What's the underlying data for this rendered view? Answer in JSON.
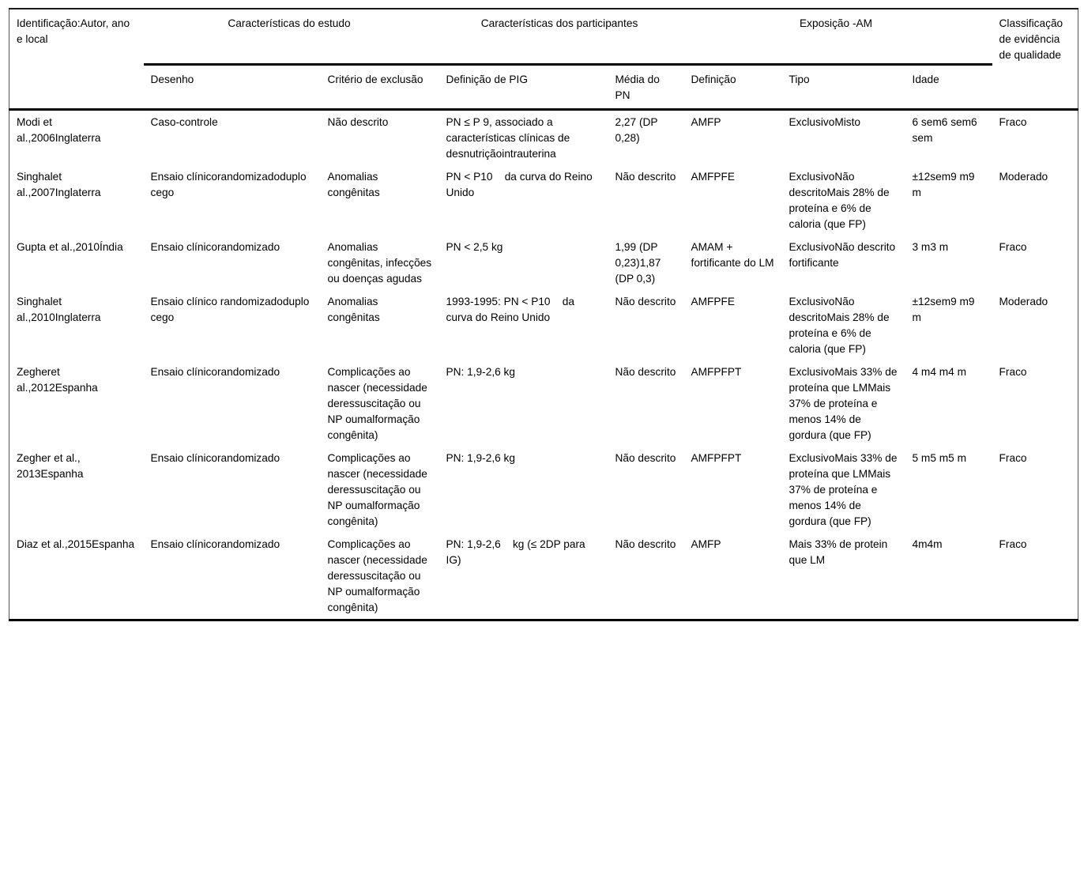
{
  "table": {
    "header": {
      "col_identification": "Identificação:Autor, ano e local",
      "group_study": "Características do estudo",
      "group_participants": "Características dos participantes",
      "group_exposure": "Exposição -AM",
      "col_quality": "Classificação de evidência de qualidade",
      "sub_design": "Desenho",
      "sub_exclusion": "Critério de exclusão",
      "sub_pig_definition": "Definição de PIG",
      "sub_mean_pn": "Média do PN",
      "sub_definition": "Definição",
      "sub_type": "Tipo",
      "sub_age": "Idade"
    },
    "rows": [
      [
        "Modi et al.,2006Inglaterra",
        "Caso-controle",
        "Não descrito",
        "PN ≤ P 9, associado a características clínicas de desnutriçãointrauterina",
        "2,27 (DP 0,28)",
        "AMFP",
        "ExclusivoMisto",
        "6 sem6 sem6 sem",
        "Fraco"
      ],
      [
        "Singhalet al.,2007Inglaterra",
        "Ensaio clínicorandomizadoduplo cego",
        "Anomalias congênitas",
        "PN < P10    da curva do Reino Unido",
        "Não descrito",
        "AMFPFE",
        "ExclusivoNão descritoMais 28% de proteína e 6% de caloria (que FP)",
        "±12sem9 m9 m",
        "Moderado"
      ],
      [
        "Gupta et al.,2010Índia",
        "Ensaio clínicorandomizado",
        "Anomalias congênitas, infecções ou doenças agudas",
        "PN < 2,5 kg",
        "1,99 (DP 0,23)1,87 (DP 0,3)",
        "AMAM + fortificante do LM",
        "ExclusivoNão descrito fortificante",
        "3 m3 m",
        "Fraco"
      ],
      [
        "Singhalet al.,2010Inglaterra",
        "Ensaio clínico randomizadoduplo cego",
        "Anomalias congênitas",
        "1993-1995: PN < P10    da curva do Reino Unido",
        "Não descrito",
        "AMFPFE",
        "ExclusivoNão descritoMais 28% de proteína e 6% de caloria (que FP)",
        "±12sem9 m9 m",
        "Moderado"
      ],
      [
        "Zegheret al.,2012Espanha",
        "Ensaio clínicorandomizado",
        "Complicações ao nascer (necessidade deressuscitação ou NP oumalformação congênita)",
        "PN: 1,9-2,6 kg",
        "Não descrito",
        "AMFPFPT",
        "ExclusivoMais 33% de proteína que LMMais 37% de proteína e menos 14% de gordura (que FP)",
        "4 m4 m4 m",
        "Fraco"
      ],
      [
        "Zegher et al., 2013Espanha",
        "Ensaio clínicorandomizado",
        "Complicações ao nascer (necessidade deressuscitação ou NP oumalformação congênita)",
        "PN: 1,9-2,6 kg",
        "Não descrito",
        "AMFPFPT",
        "ExclusivoMais 33% de proteína que LMMais 37% de proteína e menos 14% de gordura (que FP)",
        "5 m5 m5 m",
        "Fraco"
      ],
      [
        "Diaz et al.,2015Espanha",
        "Ensaio clínicorandomizado",
        "Complicações ao nascer (necessidade deressuscitação ou NP oumalformação congênita)",
        "PN: 1,9-2,6    kg (≤ 2DP para IG)",
        "Não descrito",
        "AMFP",
        "Mais 33% de protein que LM",
        "4m4m",
        "Fraco"
      ]
    ]
  },
  "colors": {
    "background": "#ffffff",
    "text": "#000000",
    "rule": "#000000"
  }
}
